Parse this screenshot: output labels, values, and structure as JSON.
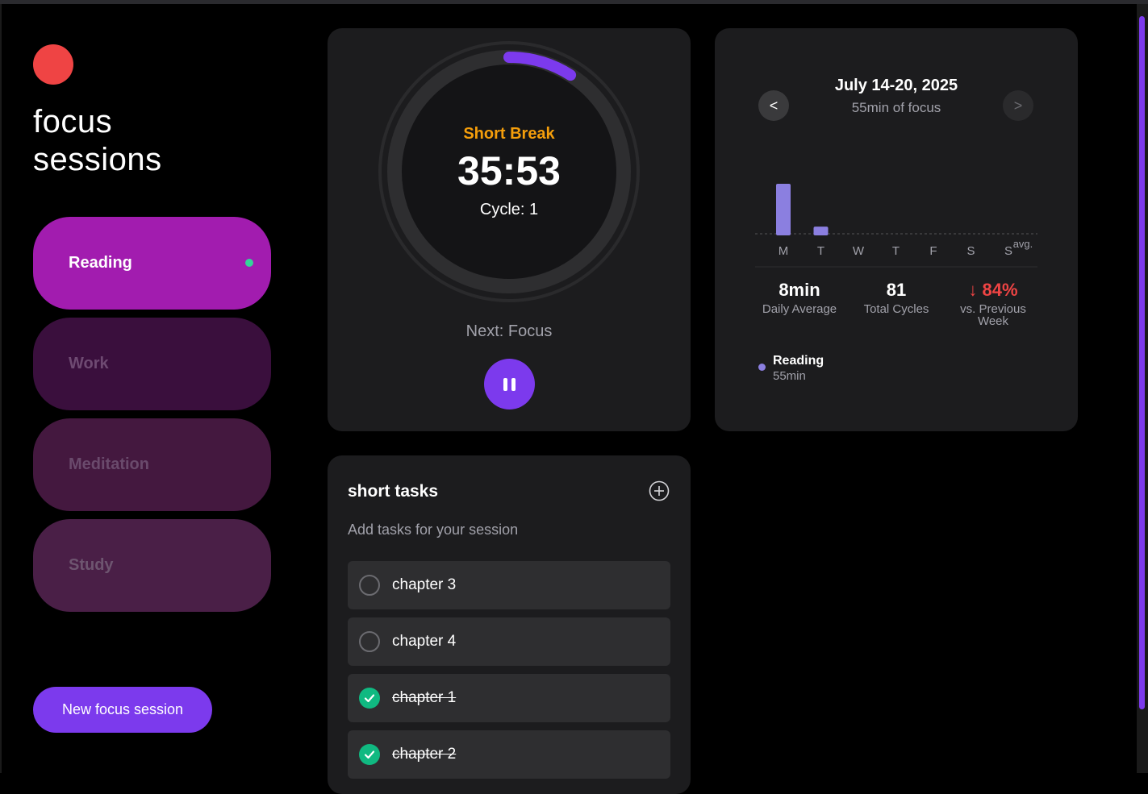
{
  "sidebar": {
    "title_line1": "focus",
    "title_line2": "sessions",
    "sessions": [
      {
        "label": "Reading",
        "active": true
      },
      {
        "label": "Work",
        "active": false
      },
      {
        "label": "Meditation",
        "active": false
      },
      {
        "label": "Study",
        "active": false
      }
    ],
    "new_button": "New focus session"
  },
  "timer": {
    "phase": "Short Break",
    "time": "35:53",
    "cycle": "Cycle: 1",
    "next": "Next: Focus",
    "progress": 0.09,
    "pause_icon": "pause-icon"
  },
  "stats": {
    "prev_label": "<",
    "next_label": ">",
    "week": "July 14-20, 2025",
    "week_total": "55min of focus",
    "daily_avg_value": "8min",
    "daily_avg_label": "Daily Average",
    "cycles_value": "81",
    "cycles_label": "Total Cycles",
    "change_value": "84%",
    "change_label": "vs. Previous Week",
    "change_icon": "arrow-down-icon",
    "legend_name": "Reading",
    "legend_value": "55min"
  },
  "chart_data": {
    "type": "bar",
    "categories": [
      "M",
      "T",
      "W",
      "T",
      "F",
      "S",
      "S"
    ],
    "values": [
      47,
      8,
      0,
      0,
      0,
      0,
      0
    ],
    "avg_label": "avg.",
    "avg_value": 8,
    "bar_color": "#8b7fe0"
  },
  "tasks": {
    "title": "short tasks",
    "subtitle": "Add tasks for your session",
    "items": [
      {
        "name": "chapter 3",
        "done": false
      },
      {
        "name": "chapter 4",
        "done": false
      },
      {
        "name": "chapter 1",
        "done": true
      },
      {
        "name": "chapter 2",
        "done": true
      }
    ]
  },
  "colors": {
    "accent": "#7c3aed",
    "active_session": "#a21caf",
    "break_phase": "#f59e0b",
    "done": "#10b981",
    "negative": "#ef4444"
  }
}
